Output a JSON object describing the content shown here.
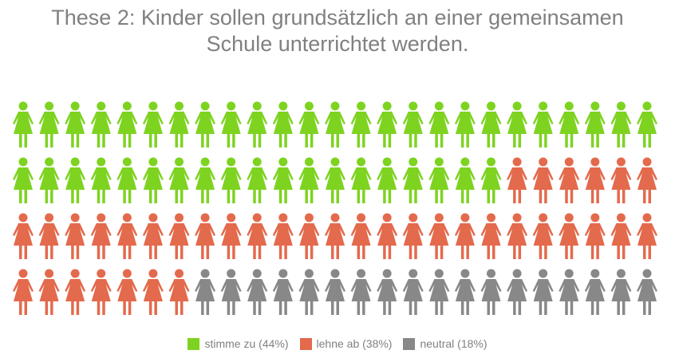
{
  "chart_data": {
    "type": "pictogram",
    "title_lines": [
      "These 2: Kinder sollen grundsätzlich an einer gemeinsamen",
      "Schule unterrichtet werden."
    ],
    "icon": "female-person-icon",
    "total_icons": 100,
    "rows": 4,
    "columns": 25,
    "series": [
      {
        "name": "stimme zu (44%)",
        "value": 44,
        "color": "#7ed321"
      },
      {
        "name": "lehne ab (38%)",
        "value": 38,
        "color": "#e36a4d"
      },
      {
        "name": "neutral (18%)",
        "value": 18,
        "color": "#888888"
      }
    ],
    "legend_position": "bottom"
  }
}
